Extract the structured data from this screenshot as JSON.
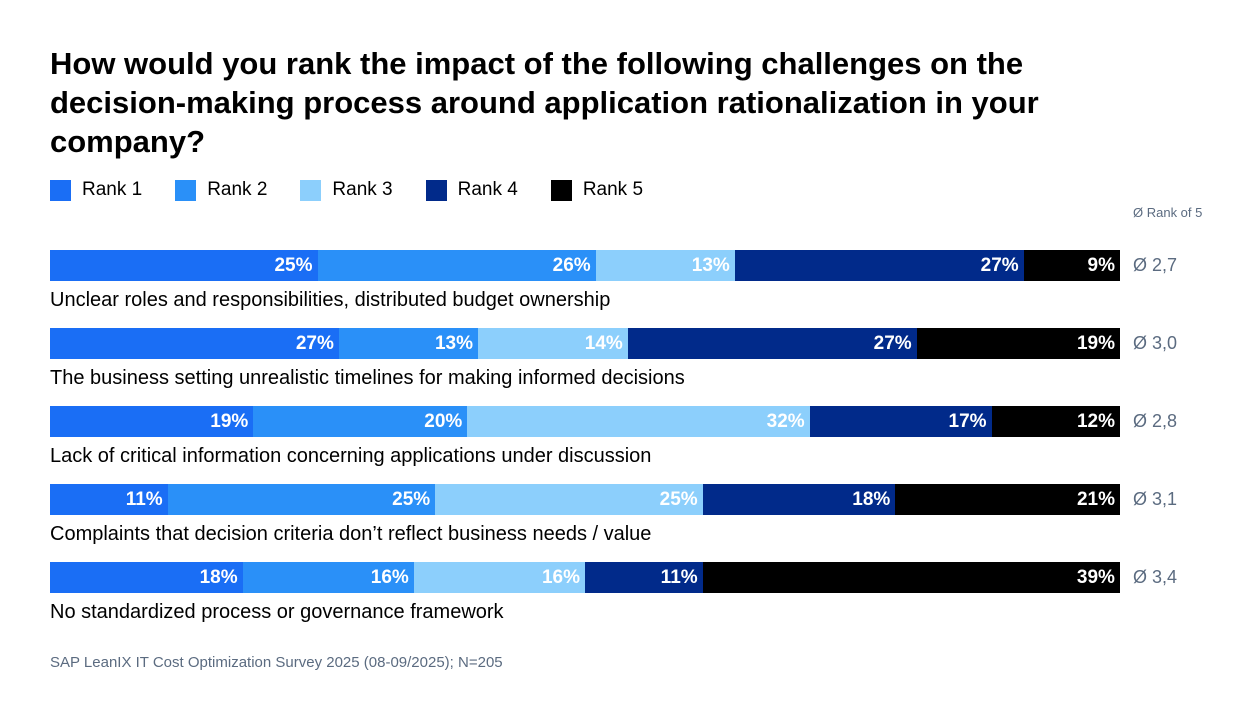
{
  "chart_data": {
    "type": "bar",
    "orientation": "horizontal",
    "stacked": true,
    "title": "How would you rank the impact of the following challenges on the decision-making process around application rationalization in your company?",
    "legend_position": "top-left",
    "value_unit": "%",
    "average_header": "Ø Rank of 5",
    "categories": [
      "Unclear roles and responsibilities, distributed budget ownership",
      "The business setting unrealistic timelines for making informed decisions",
      "Lack of critical information concerning applications under discussion",
      "Complaints that decision criteria don’t reflect business needs / value",
      "No standardized process or governance framework"
    ],
    "series": [
      {
        "name": "Rank 1",
        "color": "#1a6ef5",
        "values": [
          25,
          27,
          19,
          11,
          18
        ]
      },
      {
        "name": "Rank 2",
        "color": "#2a90f8",
        "values": [
          26,
          13,
          20,
          25,
          16
        ]
      },
      {
        "name": "Rank 3",
        "color": "#8ccffc",
        "values": [
          13,
          14,
          32,
          25,
          16
        ]
      },
      {
        "name": "Rank 4",
        "color": "#012a8a",
        "values": [
          27,
          27,
          17,
          18,
          11
        ]
      },
      {
        "name": "Rank 5",
        "color": "#000000",
        "values": [
          9,
          19,
          12,
          21,
          39
        ]
      }
    ],
    "averages": [
      "Ø 2,7",
      "Ø 3,0",
      "Ø 2,8",
      "Ø 3,1",
      "Ø 3,4"
    ],
    "source": "SAP LeanIX IT Cost Optimization Survey 2025 (08-09/2025); N=205"
  }
}
